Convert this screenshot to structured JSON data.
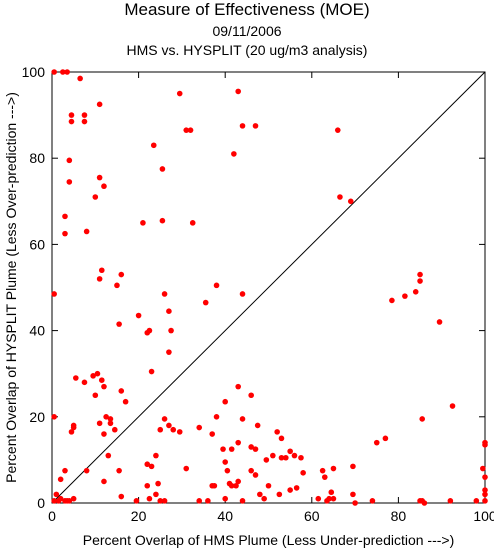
{
  "chart_data": {
    "type": "scatter",
    "title": "Measure of Effectiveness (MOE)",
    "subtitle_date": "09/11/2006",
    "subtitle_analysis": "HMS vs. HYSPLIT  (20 ug/m3 analysis)",
    "xlabel": "Percent Overlap of HMS Plume (Less Under-prediction --->)",
    "ylabel": "Percent Overlap of HYSPLIT Plume (Less Over-prediction --->)",
    "xlim": [
      0,
      100
    ],
    "ylim": [
      0,
      100
    ],
    "x_ticks": [
      "0",
      "20",
      "40",
      "60",
      "80",
      "100"
    ],
    "y_ticks": [
      "0",
      "20",
      "40",
      "60",
      "80",
      "100"
    ],
    "reference_line": "y = x",
    "point_color": "#ff0000",
    "series": [
      {
        "points": [
          [
            0.5,
            100
          ],
          [
            2.5,
            100
          ],
          [
            3.5,
            100
          ],
          [
            6.5,
            98.5
          ],
          [
            4.5,
            90
          ],
          [
            4.5,
            88.5
          ],
          [
            7.5,
            90
          ],
          [
            7.5,
            88.5
          ],
          [
            11,
            92.5
          ],
          [
            29.5,
            95
          ],
          [
            43,
            95.5
          ],
          [
            31,
            86.5
          ],
          [
            32,
            86.5
          ],
          [
            44,
            87.5
          ],
          [
            47,
            87.5
          ],
          [
            66,
            86.5
          ],
          [
            4,
            79.5
          ],
          [
            23.5,
            83
          ],
          [
            25.5,
            77.5
          ],
          [
            42,
            81
          ],
          [
            4,
            74.5
          ],
          [
            10,
            71
          ],
          [
            11,
            75.5
          ],
          [
            12,
            73.5
          ],
          [
            66.5,
            71
          ],
          [
            69,
            70
          ],
          [
            3,
            66.5
          ],
          [
            3,
            62.5
          ],
          [
            8,
            63
          ],
          [
            21,
            65
          ],
          [
            25.5,
            65.5
          ],
          [
            32.5,
            65
          ],
          [
            11.5,
            54
          ],
          [
            11,
            52
          ],
          [
            15,
            50.5
          ],
          [
            16,
            53
          ],
          [
            26,
            48.5
          ],
          [
            38,
            50.5
          ],
          [
            44,
            48.5
          ],
          [
            0.5,
            48.5
          ],
          [
            27,
            44.5
          ],
          [
            20,
            43.5
          ],
          [
            35.5,
            46.5
          ],
          [
            15.5,
            41.5
          ],
          [
            27.5,
            40
          ],
          [
            22,
            39.5
          ],
          [
            22.5,
            40
          ],
          [
            27,
            35
          ],
          [
            85,
            53
          ],
          [
            85,
            51.5
          ],
          [
            84,
            49
          ],
          [
            81.5,
            48
          ],
          [
            78.5,
            47
          ],
          [
            89.5,
            42
          ],
          [
            23,
            30.5
          ],
          [
            5.5,
            29
          ],
          [
            7.5,
            28
          ],
          [
            9.5,
            29.5
          ],
          [
            10.5,
            30
          ],
          [
            11.5,
            28.5
          ],
          [
            12,
            27
          ],
          [
            16,
            26
          ],
          [
            10,
            25
          ],
          [
            43,
            27
          ],
          [
            46,
            25
          ],
          [
            0.5,
            20
          ],
          [
            11,
            18.5
          ],
          [
            12.5,
            20
          ],
          [
            13.5,
            19.5
          ],
          [
            13.5,
            18.5
          ],
          [
            14.5,
            17
          ],
          [
            5,
            18
          ],
          [
            5,
            17.5
          ],
          [
            4.5,
            16.5
          ],
          [
            12,
            16
          ],
          [
            26,
            19.5
          ],
          [
            27,
            18
          ],
          [
            28,
            17
          ],
          [
            29.5,
            16.5
          ],
          [
            34,
            17.5
          ],
          [
            40,
            23.5
          ],
          [
            38,
            20
          ],
          [
            44,
            19.5
          ],
          [
            37,
            16
          ],
          [
            47.5,
            18
          ],
          [
            52,
            16.5
          ],
          [
            53,
            15
          ],
          [
            17,
            23.5
          ],
          [
            25,
            17
          ],
          [
            75,
            14
          ],
          [
            77,
            15
          ],
          [
            85.5,
            19.5
          ],
          [
            92.5,
            22.5
          ],
          [
            100,
            14
          ],
          [
            100,
            13.5
          ],
          [
            43,
            14
          ],
          [
            41.5,
            12.5
          ],
          [
            46,
            13
          ],
          [
            39.5,
            12.5
          ],
          [
            47,
            12.5
          ],
          [
            49.5,
            10
          ],
          [
            51,
            11
          ],
          [
            53,
            10.5
          ],
          [
            54,
            10.5
          ],
          [
            55,
            12
          ],
          [
            56,
            11
          ],
          [
            57.5,
            10.5
          ],
          [
            22,
            9
          ],
          [
            23,
            8.5
          ],
          [
            24,
            11
          ],
          [
            2,
            5.5
          ],
          [
            3,
            7.5
          ],
          [
            8,
            7.5
          ],
          [
            12,
            5
          ],
          [
            13,
            11
          ],
          [
            15.5,
            7.5
          ],
          [
            16,
            1.5
          ],
          [
            22,
            4
          ],
          [
            24.5,
            4.5
          ],
          [
            24,
            2
          ],
          [
            22.5,
            1
          ],
          [
            31,
            8
          ],
          [
            37,
            4
          ],
          [
            37.5,
            4
          ],
          [
            40,
            9.5
          ],
          [
            40.5,
            7.5
          ],
          [
            41,
            4.5
          ],
          [
            41.5,
            4
          ],
          [
            42.5,
            4
          ],
          [
            43,
            5
          ],
          [
            46,
            7.5
          ],
          [
            47,
            6.5
          ],
          [
            50,
            4
          ],
          [
            52.5,
            2
          ],
          [
            55,
            3
          ],
          [
            56.5,
            3.5
          ],
          [
            58,
            7
          ],
          [
            62.5,
            7.5
          ],
          [
            63,
            6
          ],
          [
            65,
            8
          ],
          [
            69.5,
            8.5
          ],
          [
            1,
            2
          ],
          [
            1.5,
            0.5
          ],
          [
            0.5,
            0.5
          ],
          [
            2,
            1
          ],
          [
            3,
            0.5
          ],
          [
            3.5,
            0.5
          ],
          [
            4,
            0.5
          ],
          [
            5,
            1
          ],
          [
            19.5,
            0.5
          ],
          [
            25,
            0.5
          ],
          [
            26,
            0.5
          ],
          [
            34,
            0.5
          ],
          [
            36,
            0.5
          ],
          [
            40,
            1
          ],
          [
            44,
            0.5
          ],
          [
            48,
            2
          ],
          [
            49,
            1
          ],
          [
            61.5,
            1
          ],
          [
            64,
            1
          ],
          [
            65,
            1
          ],
          [
            69.5,
            2
          ],
          [
            70,
            0
          ],
          [
            74,
            0.5
          ],
          [
            85,
            0.5
          ],
          [
            86,
            0
          ],
          [
            92,
            0.5
          ],
          [
            98,
            0.5
          ],
          [
            100,
            0.5
          ],
          [
            100,
            2
          ],
          [
            100,
            3
          ],
          [
            99.5,
            8
          ],
          [
            100,
            6
          ],
          [
            64.5,
            2.5
          ],
          [
            63.5,
            0.5
          ],
          [
            85.5,
            0.5
          ]
        ]
      }
    ]
  }
}
